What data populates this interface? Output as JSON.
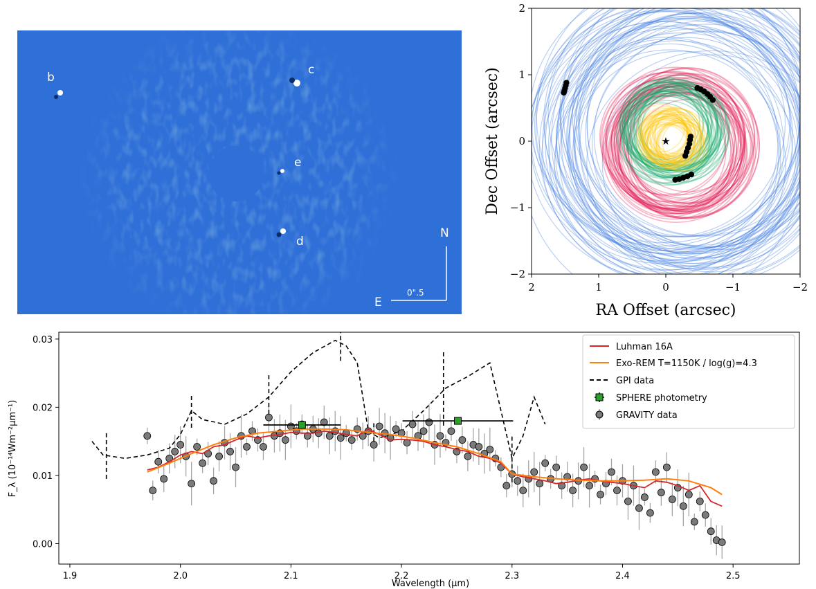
{
  "image_panel": {
    "background": "#2f6fd8",
    "planet_labels": [
      "b",
      "c",
      "e",
      "d"
    ],
    "compass": {
      "north": "N",
      "east": "E",
      "scale": "0\".5"
    }
  },
  "chart_data": [
    {
      "type": "scatter",
      "name": "orbit-fits",
      "xlabel": "RA Offset (arcsec)",
      "ylabel": "Dec Offset (arcsec)",
      "xlim": [
        2,
        -2
      ],
      "ylim": [
        -2,
        2
      ],
      "xticks": [
        2,
        1,
        0,
        -1,
        -2
      ],
      "yticks": [
        -2,
        -1,
        0,
        1,
        2
      ],
      "star": {
        "x": 0,
        "y": 0
      },
      "orbit_families": [
        {
          "planet": "b",
          "color": "#3a78e0",
          "center": [
            -0.3,
            0.05
          ],
          "radius": 1.85
        },
        {
          "planet": "c",
          "color": "#e0104c",
          "center": [
            -0.18,
            -0.05
          ],
          "radius": 0.95
        },
        {
          "planet": "d",
          "color": "#0aa564",
          "center": [
            -0.1,
            0.15
          ],
          "radius": 0.65
        },
        {
          "planet": "e",
          "color": "#ffc400",
          "center": [
            -0.1,
            0.05
          ],
          "radius": 0.35
        }
      ],
      "astrometry": [
        {
          "planet": "b",
          "points": [
            [
              1.48,
              0.88
            ],
            [
              1.49,
              0.84
            ],
            [
              1.5,
              0.8
            ],
            [
              1.51,
              0.76
            ],
            [
              1.52,
              0.73
            ]
          ]
        },
        {
          "planet": "c",
          "points": [
            [
              -0.47,
              0.8
            ],
            [
              -0.52,
              0.78
            ],
            [
              -0.57,
              0.75
            ],
            [
              -0.62,
              0.71
            ],
            [
              -0.66,
              0.67
            ],
            [
              -0.7,
              0.62
            ]
          ]
        },
        {
          "planet": "d",
          "points": [
            [
              -0.14,
              -0.58
            ],
            [
              -0.2,
              -0.57
            ],
            [
              -0.26,
              -0.55
            ],
            [
              -0.32,
              -0.53
            ],
            [
              -0.38,
              -0.5
            ]
          ]
        },
        {
          "planet": "e",
          "points": [
            [
              -0.37,
              0.07
            ],
            [
              -0.36,
              0.02
            ],
            [
              -0.35,
              -0.04
            ],
            [
              -0.33,
              -0.1
            ],
            [
              -0.31,
              -0.16
            ],
            [
              -0.29,
              -0.22
            ]
          ]
        }
      ]
    },
    {
      "type": "scatter",
      "name": "spectrum",
      "xlabel": "Wavelength (μm)",
      "ylabel": "F_λ (10⁻¹⁴Wm⁻²μm⁻¹)",
      "xlim": [
        1.89,
        2.56
      ],
      "ylim": [
        -0.003,
        0.031
      ],
      "xticks": [
        "1.9",
        "2.0",
        "2.1",
        "2.2",
        "2.3",
        "2.4",
        "2.5"
      ],
      "yticks": [
        "0.00",
        "0.01",
        "0.02",
        "0.03"
      ],
      "legend_position": "top-right",
      "legend": [
        "Luhman 16A",
        "Exo-REM T=1150K / log(g)=4.3",
        "GPI data",
        "SPHERE photometry",
        "GRAVITY data"
      ],
      "colors": {
        "luhman": "#d62728",
        "exorem": "#ff7f0e",
        "gpi": "#000000",
        "sphere": "#2ca02c",
        "gravity": "#7a7a7a"
      },
      "luhman": {
        "x": [
          1.97,
          1.98,
          1.99,
          2.0,
          2.01,
          2.02,
          2.03,
          2.04,
          2.05,
          2.06,
          2.07,
          2.08,
          2.09,
          2.1,
          2.11,
          2.12,
          2.13,
          2.14,
          2.15,
          2.16,
          2.17,
          2.18,
          2.19,
          2.2,
          2.21,
          2.22,
          2.23,
          2.24,
          2.25,
          2.26,
          2.27,
          2.28,
          2.29,
          2.3,
          2.31,
          2.32,
          2.33,
          2.34,
          2.35,
          2.36,
          2.37,
          2.38,
          2.39,
          2.4,
          2.41,
          2.42,
          2.43,
          2.44,
          2.45,
          2.46,
          2.47,
          2.48,
          2.49
        ],
        "y": [
          0.0108,
          0.0112,
          0.012,
          0.013,
          0.0135,
          0.0132,
          0.0142,
          0.0145,
          0.0152,
          0.0158,
          0.0155,
          0.0158,
          0.016,
          0.0163,
          0.0162,
          0.0162,
          0.0165,
          0.0163,
          0.016,
          0.0158,
          0.0168,
          0.016,
          0.0152,
          0.0153,
          0.0152,
          0.015,
          0.0145,
          0.0142,
          0.0138,
          0.0135,
          0.0128,
          0.0125,
          0.0118,
          0.0102,
          0.0098,
          0.0095,
          0.0092,
          0.0088,
          0.009,
          0.0093,
          0.0095,
          0.0092,
          0.009,
          0.0088,
          0.0085,
          0.0082,
          0.0092,
          0.009,
          0.0085,
          0.0078,
          0.0085,
          0.0062,
          0.0055
        ]
      },
      "exorem": {
        "x": [
          1.97,
          1.99,
          2.01,
          2.03,
          2.05,
          2.07,
          2.09,
          2.11,
          2.13,
          2.15,
          2.17,
          2.19,
          2.21,
          2.23,
          2.25,
          2.27,
          2.29,
          2.3,
          2.32,
          2.34,
          2.36,
          2.38,
          2.4,
          2.42,
          2.44,
          2.46,
          2.48,
          2.49
        ],
        "y": [
          0.0105,
          0.0118,
          0.0132,
          0.0145,
          0.0155,
          0.0162,
          0.0165,
          0.0168,
          0.0168,
          0.0167,
          0.0163,
          0.016,
          0.0155,
          0.0148,
          0.0142,
          0.0132,
          0.012,
          0.0102,
          0.0098,
          0.0095,
          0.0093,
          0.0092,
          0.0092,
          0.0093,
          0.0095,
          0.0092,
          0.0082,
          0.0072
        ]
      },
      "gpi": {
        "x": [
          1.92,
          1.93,
          1.95,
          1.97,
          1.99,
          2.0,
          2.01,
          2.02,
          2.04,
          2.06,
          2.08,
          2.1,
          2.12,
          2.14,
          2.15,
          2.16,
          2.17,
          2.18,
          2.2,
          2.22,
          2.24,
          2.26,
          2.28,
          2.29,
          2.3,
          2.31,
          2.32,
          2.33
        ],
        "y": [
          0.015,
          0.013,
          0.0125,
          0.013,
          0.014,
          0.016,
          0.0195,
          0.0182,
          0.0175,
          0.019,
          0.0215,
          0.0252,
          0.028,
          0.0298,
          0.029,
          0.0265,
          0.0165,
          0.0155,
          0.0165,
          0.0195,
          0.0228,
          0.0245,
          0.0265,
          0.0195,
          0.0125,
          0.0158,
          0.0215,
          0.0175
        ]
      },
      "gpi_errors": [
        {
          "x": 1.933,
          "y": 0.013,
          "err": 0.0035
        },
        {
          "x": 2.01,
          "y": 0.0195,
          "err": 0.0025
        },
        {
          "x": 2.08,
          "y": 0.0215,
          "err": 0.0035
        },
        {
          "x": 2.145,
          "y": 0.0298,
          "err": 0.003
        },
        {
          "x": 2.175,
          "y": 0.016,
          "err": 0.002
        },
        {
          "x": 2.238,
          "y": 0.0228,
          "err": 0.0055
        },
        {
          "x": 2.3,
          "y": 0.0125,
          "err": 0.0035
        }
      ],
      "sphere": [
        {
          "x": 2.11,
          "y": 0.0174,
          "xerr": 0.035
        },
        {
          "x": 2.251,
          "y": 0.018,
          "xerr": 0.05
        }
      ],
      "gravity": {
        "x": [
          1.97,
          1.975,
          1.98,
          1.985,
          1.99,
          1.995,
          2.0,
          2.005,
          2.01,
          2.015,
          2.02,
          2.025,
          2.03,
          2.035,
          2.04,
          2.045,
          2.05,
          2.055,
          2.06,
          2.065,
          2.07,
          2.075,
          2.08,
          2.085,
          2.09,
          2.095,
          2.1,
          2.105,
          2.11,
          2.115,
          2.12,
          2.125,
          2.13,
          2.135,
          2.14,
          2.145,
          2.15,
          2.155,
          2.16,
          2.165,
          2.17,
          2.175,
          2.18,
          2.185,
          2.19,
          2.195,
          2.2,
          2.205,
          2.21,
          2.215,
          2.22,
          2.225,
          2.23,
          2.235,
          2.24,
          2.245,
          2.25,
          2.255,
          2.26,
          2.265,
          2.27,
          2.275,
          2.28,
          2.285,
          2.29,
          2.295,
          2.3,
          2.305,
          2.31,
          2.315,
          2.32,
          2.325,
          2.33,
          2.335,
          2.34,
          2.345,
          2.35,
          2.355,
          2.36,
          2.365,
          2.37,
          2.375,
          2.38,
          2.385,
          2.39,
          2.395,
          2.4,
          2.405,
          2.41,
          2.415,
          2.42,
          2.425,
          2.43,
          2.435,
          2.44,
          2.445,
          2.45,
          2.455,
          2.46,
          2.465,
          2.47,
          2.475,
          2.48,
          2.485,
          2.49
        ],
        "y": [
          0.0158,
          0.0078,
          0.012,
          0.0095,
          0.0125,
          0.0135,
          0.0145,
          0.0128,
          0.0088,
          0.0142,
          0.0118,
          0.0132,
          0.0092,
          0.0128,
          0.0148,
          0.0135,
          0.0112,
          0.0158,
          0.0142,
          0.0165,
          0.0152,
          0.0142,
          0.0185,
          0.0158,
          0.0162,
          0.0152,
          0.0172,
          0.0165,
          0.0175,
          0.0158,
          0.0168,
          0.0162,
          0.0178,
          0.0158,
          0.0165,
          0.0155,
          0.0162,
          0.0152,
          0.0168,
          0.0158,
          0.0165,
          0.0145,
          0.0172,
          0.0162,
          0.0155,
          0.0168,
          0.0162,
          0.0148,
          0.0175,
          0.0158,
          0.0165,
          0.0178,
          0.0145,
          0.0158,
          0.0148,
          0.0165,
          0.0135,
          0.0152,
          0.0128,
          0.0145,
          0.0142,
          0.0132,
          0.0138,
          0.0125,
          0.0112,
          0.0085,
          0.0102,
          0.0092,
          0.0078,
          0.0095,
          0.0105,
          0.0088,
          0.0118,
          0.0095,
          0.0112,
          0.0085,
          0.0098,
          0.0078,
          0.0092,
          0.0112,
          0.0085,
          0.0095,
          0.0072,
          0.0088,
          0.0105,
          0.0078,
          0.0092,
          0.0062,
          0.0085,
          0.0052,
          0.0068,
          0.0045,
          0.0105,
          0.0075,
          0.0112,
          0.0065,
          0.0082,
          0.0055,
          0.0072,
          0.0032,
          0.0062,
          0.0042,
          0.0018,
          0.0005,
          0.0002
        ]
      }
    }
  ]
}
